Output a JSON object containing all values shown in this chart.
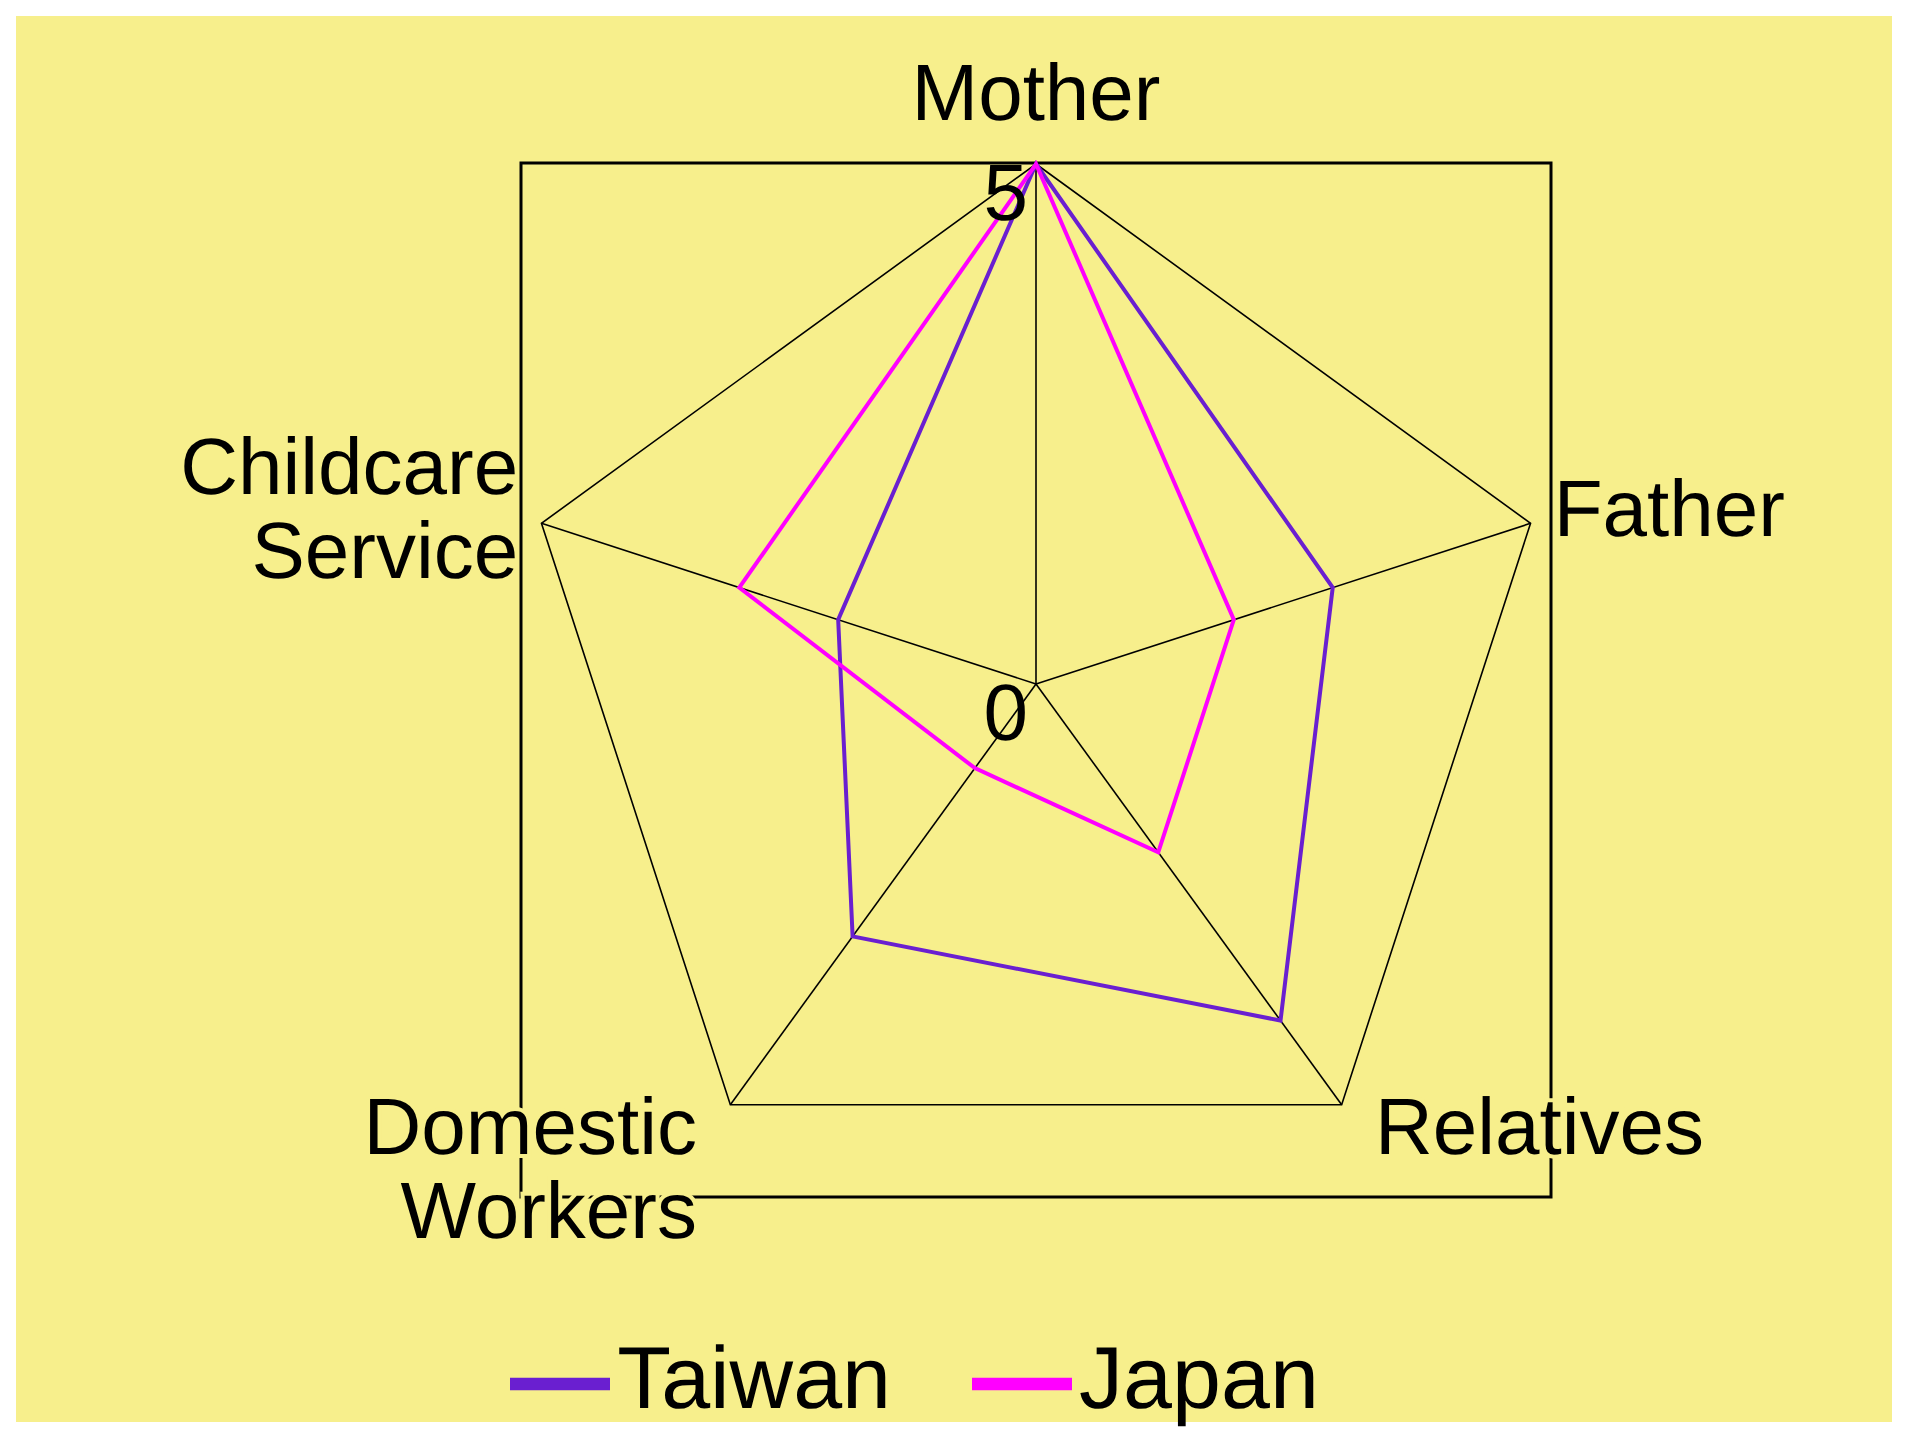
{
  "chart_data": {
    "type": "radar",
    "categories": [
      "Mother",
      "Father",
      "Relatives",
      "Domestic Workers",
      "Childcare Service"
    ],
    "series": [
      {
        "name": "Taiwan",
        "color": "#6a1fd0",
        "values": [
          5,
          3,
          4,
          3,
          2
        ]
      },
      {
        "name": "Japan",
        "color": "#ff00ff",
        "values": [
          5,
          2,
          2,
          1,
          3
        ]
      }
    ],
    "ylim": [
      0,
      5
    ],
    "yticks": [
      0,
      5
    ],
    "grid": true,
    "legend": "bottom",
    "marker": "none"
  }
}
